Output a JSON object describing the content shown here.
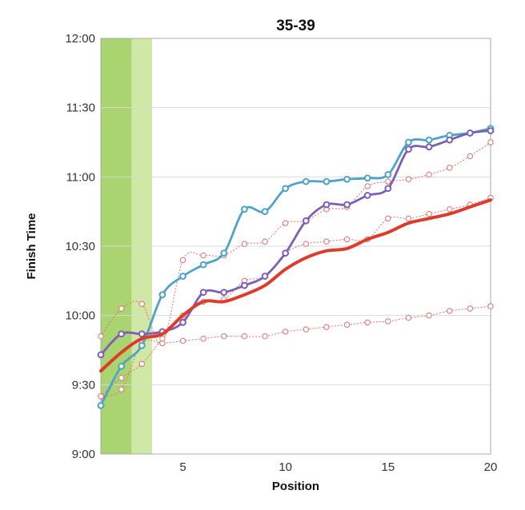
{
  "chart_data": {
    "type": "line",
    "title": "35-39",
    "xlabel": "Position",
    "ylabel": "Finish Time",
    "xlim": [
      1,
      20
    ],
    "ylim": [
      540,
      720
    ],
    "x_ticks": [
      5,
      10,
      15,
      20
    ],
    "y_ticks": [
      {
        "value": 540,
        "label": "9:00"
      },
      {
        "value": 570,
        "label": "9:30"
      },
      {
        "value": 600,
        "label": "10:00"
      },
      {
        "value": 630,
        "label": "10:30"
      },
      {
        "value": 660,
        "label": "11:00"
      },
      {
        "value": 690,
        "label": "11:30"
      },
      {
        "value": 720,
        "label": "12:00"
      }
    ],
    "grid": "horizontal",
    "bands": [
      {
        "from": 1,
        "to": 2.5,
        "color": "#a9d46f"
      },
      {
        "from": 2.5,
        "to": 3.5,
        "color": "#cfe8a6"
      }
    ],
    "series": [
      {
        "color": "#4ea3c6",
        "style": "solid-thick",
        "x": [
          1,
          2,
          3,
          4,
          5,
          6,
          7,
          8,
          9,
          10,
          11,
          12,
          13,
          14,
          15,
          16,
          17,
          18,
          19,
          20
        ],
        "values": [
          561,
          578,
          587,
          609,
          617,
          622,
          627,
          646,
          645,
          655,
          658,
          658,
          659,
          659.5,
          661,
          675,
          676,
          678,
          679,
          681
        ]
      },
      {
        "color": "#7d5fb5",
        "style": "solid-thick",
        "x": [
          1,
          2,
          3,
          4,
          5,
          6,
          7,
          8,
          9,
          10,
          11,
          12,
          13,
          14,
          15,
          16,
          17,
          18,
          19,
          20
        ],
        "values": [
          583,
          592,
          592,
          593,
          597,
          610,
          610,
          613,
          617,
          627,
          641,
          648,
          648,
          652,
          655,
          672,
          673,
          676,
          679,
          680
        ]
      },
      {
        "color": "#dd3b2c",
        "style": "solid-bold",
        "x": [
          1,
          2,
          3,
          4,
          5,
          6,
          7,
          8,
          9,
          10,
          11,
          12,
          13,
          14,
          15,
          16,
          17,
          18,
          19,
          20
        ],
        "values": [
          576,
          584,
          590,
          592,
          600,
          606,
          606,
          609,
          613,
          620,
          625,
          628,
          629,
          633,
          636,
          640,
          642,
          644,
          647,
          650
        ]
      },
      {
        "color": "#e07070",
        "style": "dotted-markers",
        "x": [
          1,
          2,
          3,
          4,
          5,
          6,
          7,
          8,
          9,
          10,
          11,
          12,
          13,
          14,
          15,
          16,
          17,
          18,
          19,
          20
        ],
        "values": [
          591,
          603,
          605,
          588,
          624,
          626,
          626,
          631,
          632,
          640,
          641,
          646,
          647,
          656,
          658,
          659,
          661,
          664,
          669,
          675
        ]
      },
      {
        "color": "#e07070",
        "style": "dotted-markers",
        "x": [
          1,
          2,
          3,
          4,
          5,
          6,
          7,
          8,
          9,
          10,
          11,
          12,
          13,
          14,
          15,
          16,
          17,
          18,
          19,
          20
        ],
        "values": [
          565,
          568,
          588,
          588,
          589,
          590,
          591,
          591,
          591,
          593,
          594,
          595,
          596,
          597,
          597.5,
          599,
          600,
          602,
          603,
          604
        ]
      },
      {
        "color": "#e07070",
        "style": "dotted-markers",
        "x": [
          1,
          2,
          3,
          4,
          5,
          6,
          7,
          8,
          9,
          10,
          11,
          12,
          13,
          14,
          15,
          16,
          17,
          18,
          19,
          20
        ],
        "values": [
          565,
          573,
          579,
          590,
          600,
          606,
          607,
          615,
          617,
          627,
          631,
          632,
          633,
          633,
          642,
          642,
          644,
          646,
          648,
          651
        ]
      }
    ]
  }
}
